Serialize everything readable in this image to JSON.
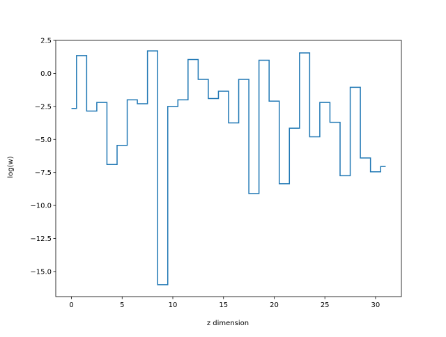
{
  "chart_data": {
    "type": "line",
    "drawstyle": "steps-mid",
    "title": "",
    "xlabel": "z dimension",
    "ylabel": "log(w)",
    "xlim": [
      -1.55,
      32.55
    ],
    "ylim": [
      -16.9,
      2.5
    ],
    "grid": false,
    "x_ticks": [
      0,
      5,
      10,
      15,
      20,
      25,
      30
    ],
    "x_tick_labels": [
      "0",
      "5",
      "10",
      "15",
      "20",
      "25",
      "30"
    ],
    "y_ticks": [
      2.5,
      0.0,
      -2.5,
      -5.0,
      -7.5,
      -10.0,
      -12.5,
      -15.0
    ],
    "y_tick_labels": [
      "2.5",
      "0.0",
      "−2.5",
      "−5.0",
      "−7.5",
      "−10.0",
      "−12.5",
      "−15.0"
    ],
    "series": [
      {
        "color": "#1f77b4",
        "x": [
          0,
          1,
          2,
          3,
          4,
          5,
          6,
          7,
          8,
          9,
          10,
          11,
          12,
          13,
          14,
          15,
          16,
          17,
          18,
          19,
          20,
          21,
          22,
          23,
          24,
          25,
          26,
          27,
          28,
          29,
          30,
          31
        ],
        "y": [
          -2.65,
          1.35,
          -2.85,
          -2.2,
          -6.9,
          -5.45,
          -2.0,
          -2.3,
          1.7,
          -16.0,
          -2.5,
          -2.0,
          1.05,
          -0.45,
          -1.9,
          -1.35,
          -3.75,
          -0.45,
          -9.1,
          1.0,
          -2.1,
          -8.35,
          -4.15,
          1.55,
          -4.8,
          -2.2,
          -3.7,
          -7.75,
          -1.05,
          -6.4,
          -7.45,
          -7.05
        ]
      }
    ]
  }
}
